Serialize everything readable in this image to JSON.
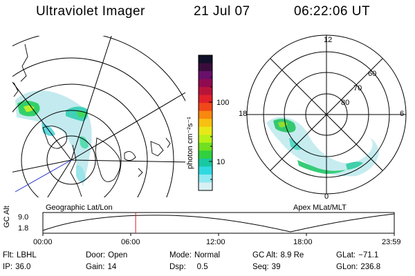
{
  "header": {
    "title": "Ultraviolet Imager",
    "date": "21 Jul 07",
    "time": "06:22:06 UT"
  },
  "colorbar": {
    "unit_label": "photon cm⁻²s⁻¹",
    "ticks": [
      "100",
      "10"
    ],
    "colors": [
      "#101028",
      "#3a0c3c",
      "#68106a",
      "#900a50",
      "#b8143a",
      "#e0202a",
      "#f04818",
      "#f88810",
      "#f8c010",
      "#e8e818",
      "#b8f018",
      "#70e020",
      "#30d040",
      "#18c8a0",
      "#30d8e0",
      "#90e8f0",
      "#d8f0f4"
    ]
  },
  "left_map": {
    "label": "Geographic Lat/Lon"
  },
  "right_map": {
    "label": "Apex MLat/MLT",
    "mlt_labels": [
      "12",
      "18",
      "6",
      "0"
    ],
    "lat_labels": [
      "60",
      "70",
      "80"
    ]
  },
  "timeline": {
    "axis_label": "GC Alt",
    "y_ticks": [
      "9.0",
      "1.8"
    ],
    "x_ticks": [
      "00:00",
      "06:00",
      "12:00",
      "18:00",
      "23:59"
    ],
    "current_time_fraction": 0.264
  },
  "info": {
    "filter": {
      "label": "Flt:",
      "value": "LBHL"
    },
    "ip": {
      "label": "IP:",
      "value": "36.0"
    },
    "door": {
      "label": "Door:",
      "value": "Open"
    },
    "gain": {
      "label": "Gain:",
      "value": "14"
    },
    "mode": {
      "label": "Mode:",
      "value": "Normal"
    },
    "dsp": {
      "label": "Dsp:",
      "value": "0.5"
    },
    "gc_alt": {
      "label": "GC Alt:",
      "value": "8.9 Re"
    },
    "seq": {
      "label": "Seq:",
      "value": "39"
    },
    "glat": {
      "label": "GLat:",
      "value": "−71.1"
    },
    "glon": {
      "label": "GLon:",
      "value": "236.8"
    }
  }
}
